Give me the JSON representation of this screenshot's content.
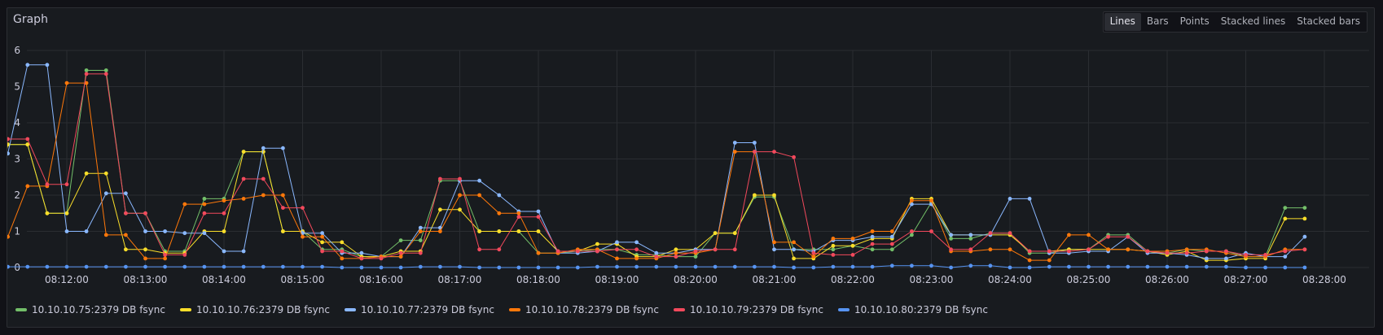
{
  "panel": {
    "title": "Graph"
  },
  "toggle": {
    "options": [
      "Lines",
      "Bars",
      "Points",
      "Stacked lines",
      "Stacked bars"
    ],
    "selected": "Lines"
  },
  "chart_data": {
    "type": "line",
    "ylim": [
      0,
      6
    ],
    "yticks": [
      0,
      1,
      2,
      3,
      4,
      5,
      6
    ],
    "x_start": "08:11:00",
    "x_step_seconds": 15,
    "xticks": [
      "08:12:00",
      "08:13:00",
      "08:14:00",
      "08:15:00",
      "08:16:00",
      "08:17:00",
      "08:18:00",
      "08:19:00",
      "08:20:00",
      "08:21:00",
      "08:22:00",
      "08:23:00",
      "08:24:00",
      "08:25:00",
      "08:26:00",
      "08:27:00",
      "08:28:00"
    ],
    "grid": true,
    "legend_position": "bottom-left",
    "series": [
      {
        "name": "10.10.10.75:2379 DB fsync",
        "color": "#73bf69",
        "values": [
          0.9,
          3.4,
          3.4,
          1.5,
          1.5,
          5.45,
          5.45,
          1.5,
          1.5,
          0.45,
          0.45,
          1.9,
          1.9,
          3.2,
          3.2,
          1.0,
          1.0,
          0.5,
          0.5,
          0.3,
          0.3,
          0.75,
          0.75,
          2.4,
          2.4,
          1.0,
          1.0,
          1.0,
          0.4,
          0.4,
          0.45,
          0.5,
          0.5,
          0.35,
          0.35,
          0.3,
          0.3,
          0.95,
          0.95,
          1.95,
          1.95,
          0.5,
          0.5,
          0.5,
          0.6,
          0.5,
          0.5,
          0.9,
          1.8,
          0.8,
          0.8,
          0.95,
          0.95,
          0.4,
          0.4,
          0.5,
          0.5,
          0.9,
          0.9,
          0.45,
          0.4,
          0.5,
          0.45,
          0.45,
          0.3,
          0.3,
          1.65,
          1.65
        ]
      },
      {
        "name": "10.10.10.76:2379 DB fsync",
        "color": "#fade2a",
        "values": [
          0.9,
          3.4,
          3.4,
          1.5,
          1.5,
          2.6,
          2.6,
          0.5,
          0.5,
          0.4,
          0.4,
          1.0,
          1.0,
          3.2,
          3.2,
          1.0,
          1.0,
          0.7,
          0.7,
          0.3,
          0.3,
          0.45,
          0.45,
          1.6,
          1.6,
          1.0,
          1.0,
          1.0,
          1.0,
          0.45,
          0.45,
          0.65,
          0.65,
          0.3,
          0.3,
          0.5,
          0.5,
          0.95,
          0.95,
          2.0,
          2.0,
          0.25,
          0.25,
          0.6,
          0.6,
          0.8,
          0.8,
          1.9,
          1.9,
          0.9,
          0.9,
          0.9,
          0.9,
          0.45,
          0.45,
          0.5,
          0.5,
          0.5,
          0.5,
          0.45,
          0.35,
          0.45,
          0.2,
          0.2,
          0.25,
          0.25,
          1.35,
          1.35
        ]
      },
      {
        "name": "10.10.10.77:2379 DB fsync",
        "color": "#8ab8ff",
        "values": [
          3.15,
          3.15,
          5.6,
          5.6,
          1.0,
          1.0,
          2.05,
          2.05,
          1.0,
          1.0,
          0.95,
          0.95,
          0.45,
          0.45,
          3.3,
          3.3,
          0.95,
          0.95,
          0.4,
          0.4,
          0.3,
          0.3,
          1.1,
          1.1,
          2.4,
          2.4,
          2.0,
          1.55,
          1.55,
          0.4,
          0.4,
          0.45,
          0.7,
          0.7,
          0.4,
          0.4,
          0.5,
          0.5,
          3.45,
          3.45,
          0.5,
          0.5,
          0.45,
          0.75,
          0.75,
          0.85,
          0.85,
          1.75,
          1.75,
          0.9,
          0.9,
          0.9,
          1.9,
          1.9,
          0.4,
          0.4,
          0.45,
          0.45,
          0.85,
          0.4,
          0.4,
          0.35,
          0.25,
          0.25,
          0.4,
          0.3,
          0.3,
          0.85
        ]
      },
      {
        "name": "10.10.10.78:2379 DB fsync",
        "color": "#ff780a",
        "values": [
          0.85,
          0.85,
          2.25,
          2.25,
          5.1,
          5.1,
          0.9,
          0.9,
          0.25,
          0.25,
          1.75,
          1.75,
          1.85,
          1.9,
          2.0,
          2.0,
          0.85,
          0.85,
          0.25,
          0.25,
          0.3,
          0.3,
          1.0,
          1.0,
          2.0,
          2.0,
          1.5,
          1.5,
          0.4,
          0.4,
          0.5,
          0.5,
          0.25,
          0.25,
          0.25,
          0.4,
          0.4,
          0.5,
          3.2,
          3.2,
          0.7,
          0.7,
          0.3,
          0.8,
          0.8,
          1.0,
          1.0,
          1.85,
          1.85,
          0.45,
          0.45,
          0.5,
          0.5,
          0.2,
          0.2,
          0.9,
          0.9,
          0.5,
          0.5,
          0.45,
          0.45,
          0.5,
          0.5,
          0.4,
          0.3,
          0.3,
          0.5,
          0.5
        ]
      },
      {
        "name": "10.10.10.79:2379 DB fsync",
        "color": "#f2495c",
        "values": [
          0.95,
          3.55,
          3.55,
          2.3,
          2.3,
          5.35,
          5.35,
          1.5,
          1.5,
          0.35,
          0.35,
          1.5,
          1.5,
          2.45,
          2.45,
          1.65,
          1.65,
          0.45,
          0.45,
          0.25,
          0.25,
          0.4,
          0.4,
          2.45,
          2.45,
          0.5,
          0.5,
          1.4,
          1.4,
          0.45,
          0.45,
          0.45,
          0.5,
          0.5,
          0.3,
          0.3,
          0.45,
          0.5,
          0.5,
          3.2,
          3.2,
          3.05,
          0.4,
          0.35,
          0.35,
          0.65,
          0.65,
          1.0,
          1.0,
          0.5,
          0.5,
          0.95,
          0.95,
          0.45,
          0.45,
          0.45,
          0.5,
          0.85,
          0.85,
          0.45,
          0.4,
          0.4,
          0.45,
          0.45,
          0.35,
          0.35,
          0.45,
          0.5
        ]
      },
      {
        "name": "10.10.10.80:2379 DB fsync",
        "color": "#5794f2",
        "values": [
          0.0,
          0.02,
          0.02,
          0.02,
          0.02,
          0.02,
          0.02,
          0.02,
          0.02,
          0.02,
          0.02,
          0.02,
          0.02,
          0.02,
          0.02,
          0.02,
          0.02,
          0.02,
          0.0,
          0.0,
          0.0,
          0.0,
          0.02,
          0.02,
          0.02,
          0.0,
          0.0,
          0.0,
          0.0,
          0.0,
          0.0,
          0.02,
          0.02,
          0.02,
          0.02,
          0.02,
          0.02,
          0.02,
          0.02,
          0.02,
          0.02,
          0.0,
          0.0,
          0.02,
          0.02,
          0.02,
          0.05,
          0.05,
          0.05,
          0.0,
          0.05,
          0.05,
          0.0,
          0.0,
          0.02,
          0.02,
          0.02,
          0.02,
          0.02,
          0.02,
          0.02,
          0.02,
          0.02,
          0.02,
          0.0,
          0.0,
          0.0,
          0.0
        ]
      }
    ]
  }
}
